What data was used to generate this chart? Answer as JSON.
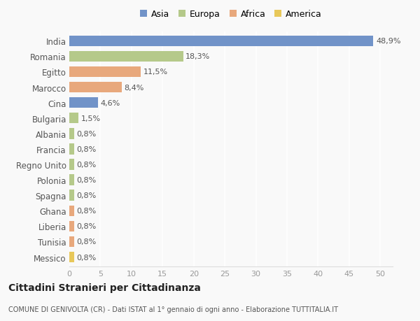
{
  "countries": [
    "India",
    "Romania",
    "Egitto",
    "Marocco",
    "Cina",
    "Bulgaria",
    "Albania",
    "Francia",
    "Regno Unito",
    "Polonia",
    "Spagna",
    "Ghana",
    "Liberia",
    "Tunisia",
    "Messico"
  ],
  "values": [
    48.9,
    18.3,
    11.5,
    8.4,
    4.6,
    1.5,
    0.8,
    0.8,
    0.8,
    0.8,
    0.8,
    0.8,
    0.8,
    0.8,
    0.8
  ],
  "labels": [
    "48,9%",
    "18,3%",
    "11,5%",
    "8,4%",
    "4,6%",
    "1,5%",
    "0,8%",
    "0,8%",
    "0,8%",
    "0,8%",
    "0,8%",
    "0,8%",
    "0,8%",
    "0,8%",
    "0,8%"
  ],
  "colors": [
    "#7193c8",
    "#b5c98a",
    "#e8a87c",
    "#e8a87c",
    "#7193c8",
    "#b5c98a",
    "#b5c98a",
    "#b5c98a",
    "#b5c98a",
    "#b5c98a",
    "#b5c98a",
    "#e8a87c",
    "#e8a87c",
    "#e8a87c",
    "#e8c85a"
  ],
  "legend_labels": [
    "Asia",
    "Europa",
    "Africa",
    "America"
  ],
  "legend_colors": [
    "#7193c8",
    "#b5c98a",
    "#e8a87c",
    "#e8c85a"
  ],
  "title": "Cittadini Stranieri per Cittadinanza",
  "subtitle": "COMUNE DI GENIVOLTA (CR) - Dati ISTAT al 1° gennaio di ogni anno - Elaborazione TUTTITALIA.IT",
  "xlim": [
    0,
    52
  ],
  "xticks": [
    0,
    5,
    10,
    15,
    20,
    25,
    30,
    35,
    40,
    45,
    50
  ],
  "background_color": "#f9f9f9",
  "grid_color": "#ffffff",
  "bar_height": 0.7
}
